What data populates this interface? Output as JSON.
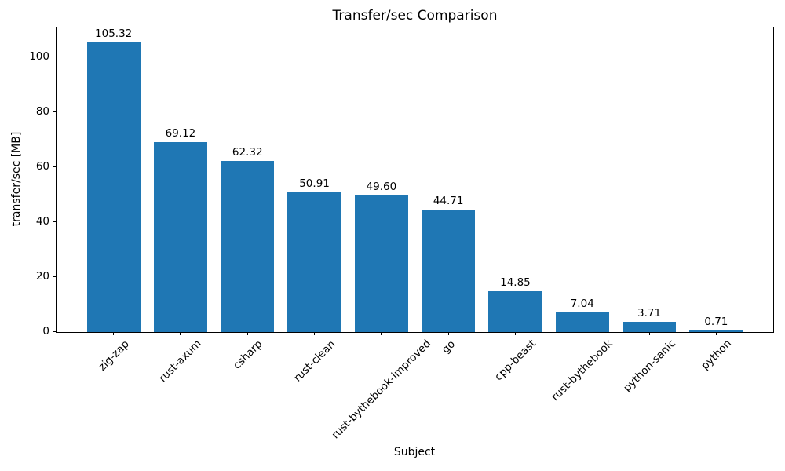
{
  "chart_data": {
    "type": "bar",
    "title": "Transfer/sec Comparison",
    "xlabel": "Subject",
    "ylabel": "transfer/sec [MB]",
    "categories": [
      "zig-zap",
      "rust-axum",
      "csharp",
      "rust-clean",
      "rust-bythebook-improved",
      "go",
      "cpp-beast",
      "rust-bythebook",
      "python-sanic",
      "python"
    ],
    "values": [
      105.32,
      69.12,
      62.32,
      50.91,
      49.6,
      44.71,
      14.85,
      7.04,
      3.71,
      0.71
    ],
    "value_label_decimals": 2,
    "bar_color": "#1f77b4",
    "ylim": [
      0,
      110.6
    ],
    "yticks": [
      0,
      20,
      40,
      60,
      80,
      100
    ],
    "x_tick_rotation_deg": 45,
    "grid": false,
    "legend_position": "none",
    "background_color": "#ffffff",
    "spine_color": "#000000"
  }
}
